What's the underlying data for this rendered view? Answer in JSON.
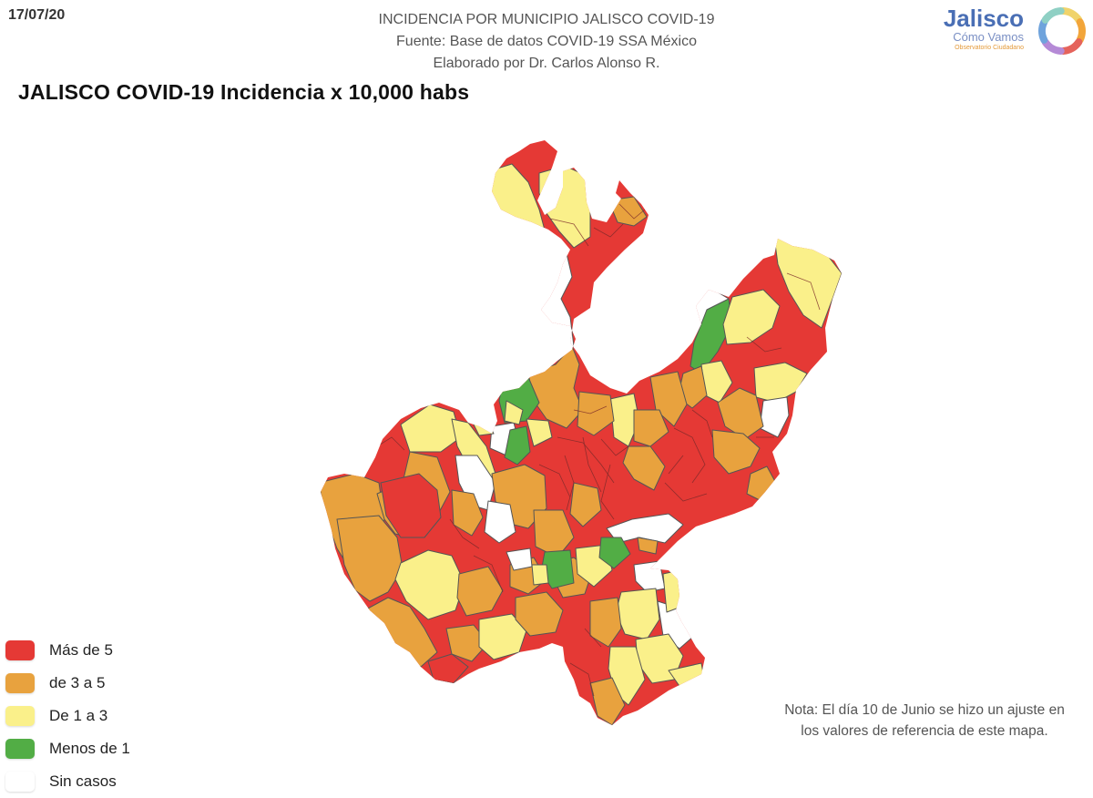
{
  "header": {
    "date": "17/07/20",
    "lines": [
      "INCIDENCIA POR MUNICIPIO JALISCO COVID-19",
      "Fuente: Base de datos COVID-19 SSA México",
      "Elaborado por Dr. Carlos Alonso R."
    ],
    "title": "JALISCO COVID-19 Incidencia x 10,000 habs"
  },
  "logo": {
    "name": "Jalisco",
    "sub": "Cómo Vamos",
    "tag": "Observatorio Ciudadano",
    "ring_colors": [
      "#f0d36b",
      "#f2a53a",
      "#e5635b",
      "#b58ad6",
      "#6fa3dc",
      "#8fd0c4"
    ]
  },
  "legend": [
    {
      "label": "Más de 5",
      "color": "#e53935"
    },
    {
      "label": "de 3 a 5",
      "color": "#e8a23e"
    },
    {
      "label": "De 1 a 3",
      "color": "#faf08a"
    },
    {
      "label": "Menos de 1",
      "color": "#52ad45"
    },
    {
      "label": "Sin casos",
      "color": "#ffffff"
    }
  ],
  "note": "Nota: El día 10 de Junio se hizo un ajuste en los valores de referencia de este mapa.",
  "map": {
    "border_color": "#444444",
    "shadow_color": "#000000"
  }
}
